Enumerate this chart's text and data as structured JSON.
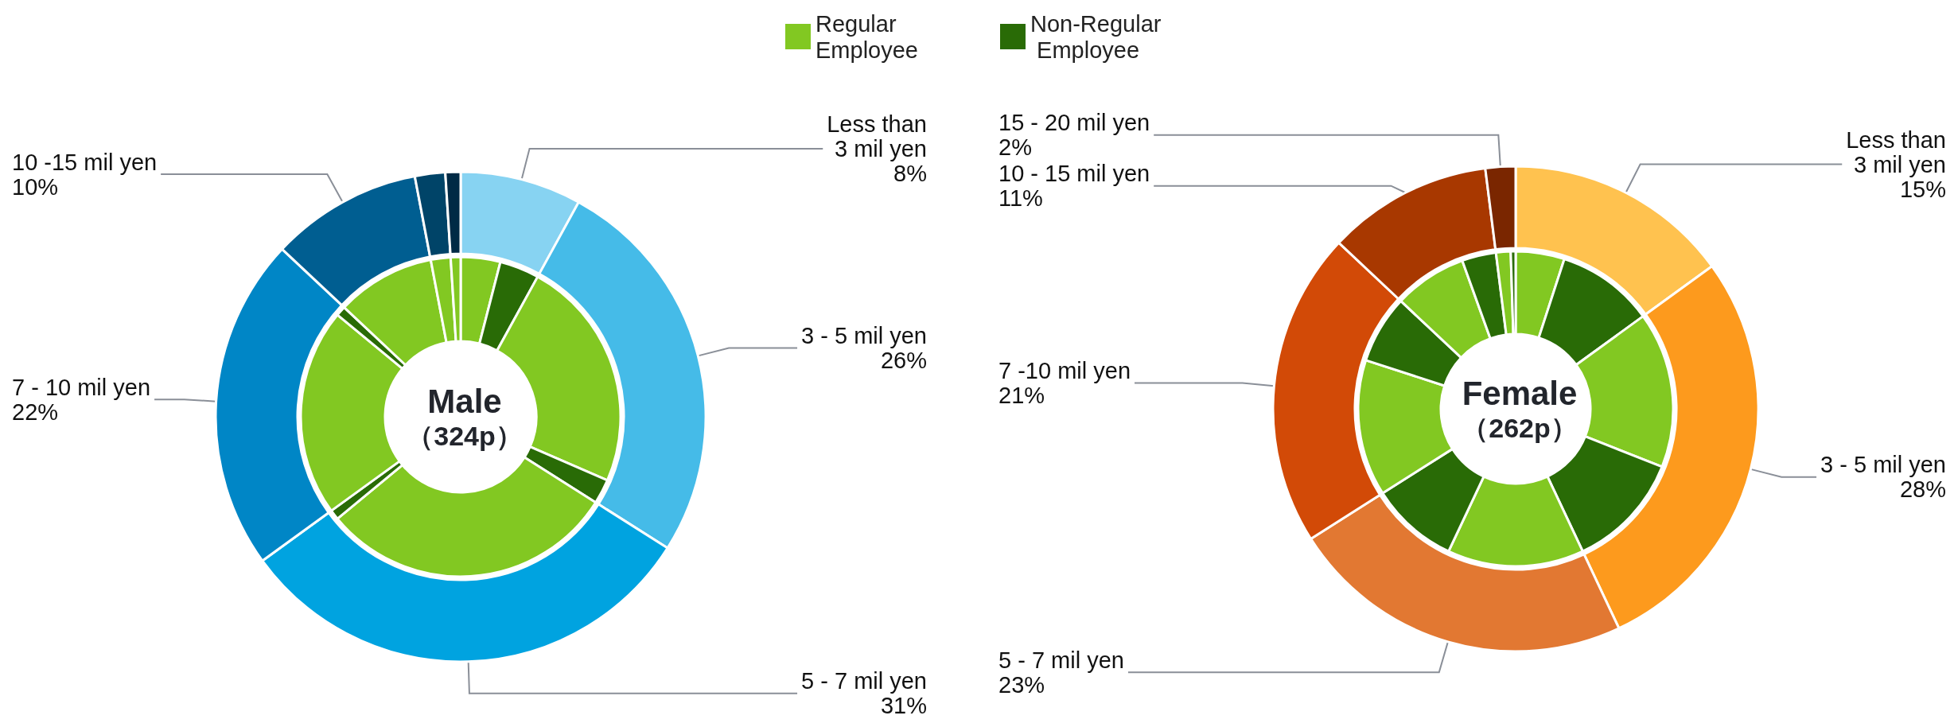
{
  "chart_data": [
    {
      "type": "donut",
      "categories": [
        "Less than\n3 mil yen",
        "3 - 5 mil yen",
        "5 - 7 mil yen",
        "7 - 10 mil yen",
        "10 -15 mil yen",
        null,
        null
      ],
      "values": [
        8,
        26,
        31,
        22,
        10,
        2,
        1
      ],
      "value_labels": [
        "8%",
        "26%",
        "31%",
        "22%",
        "10%",
        null,
        null
      ],
      "colors": [
        "#87d3f2",
        "#45bbe8",
        "#00a3e0",
        "#0086c6",
        "#005e91",
        "#004468",
        "#002a45"
      ]
    },
    {
      "type": "donut",
      "title": "Male",
      "subtitle": "（324p）",
      "legend": "top right",
      "categories": [
        "Regular Employee",
        "Non-Regular Employee",
        null,
        null,
        null,
        null,
        null,
        null,
        null,
        null,
        null
      ],
      "values": [
        4,
        4,
        23.5,
        2.5,
        30,
        1,
        21,
        1,
        10,
        2,
        1
      ],
      "colors": [
        "#82c822",
        "#296b06",
        "#82c822",
        "#296b06",
        "#82c822",
        "#296b06",
        "#82c822",
        "#296b06",
        "#82c822",
        "#82c822",
        "#82c822"
      ]
    },
    {
      "type": "donut",
      "categories": [
        "Less than\n3 mil yen",
        "3 - 5 mil yen",
        "5 - 7 mil yen",
        "7 -10 mil yen",
        "10 - 15 mil yen",
        "15 - 20 mil yen"
      ],
      "values": [
        15,
        28,
        23,
        21,
        11,
        2
      ],
      "value_labels": [
        "15%",
        "28%",
        "23%",
        "21%",
        "11%",
        "2%"
      ],
      "colors": [
        "#ffc24f",
        "#fd9a1d",
        "#e27832",
        "#d24a07",
        "#a83800",
        "#7a2600"
      ]
    },
    {
      "type": "donut",
      "title": "Female",
      "subtitle": "（262p）",
      "categories": [
        null,
        null,
        null,
        null,
        null,
        null,
        null,
        null,
        null,
        null,
        null,
        null
      ],
      "values": [
        5,
        10,
        16,
        12,
        14,
        9,
        14,
        7,
        7.5,
        3.5,
        1.5,
        0.5
      ],
      "colors": [
        "#82c822",
        "#296b06",
        "#82c822",
        "#296b06",
        "#82c822",
        "#296b06",
        "#82c822",
        "#296b06",
        "#82c822",
        "#296b06",
        "#82c822",
        "#296b06"
      ]
    }
  ]
}
